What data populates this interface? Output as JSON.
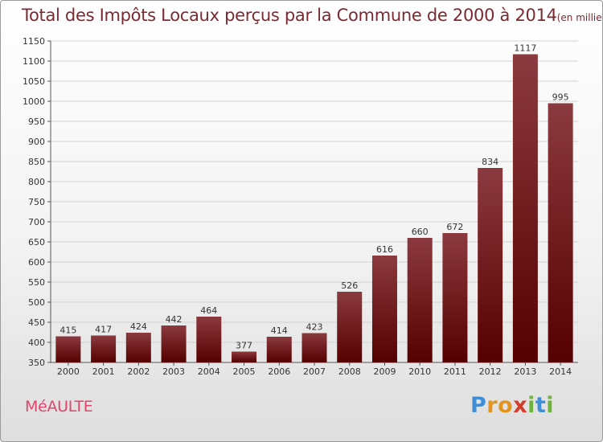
{
  "chart_data": {
    "type": "bar",
    "title": "Total des Impôts Locaux perçus par la Commune de 2000 à 2014",
    "title_unit": "(en milliers d'€)",
    "categories": [
      "2000",
      "2001",
      "2002",
      "2003",
      "2004",
      "2005",
      "2006",
      "2007",
      "2008",
      "2009",
      "2010",
      "2011",
      "2012",
      "2013",
      "2014"
    ],
    "values": [
      415,
      417,
      424,
      442,
      464,
      377,
      414,
      423,
      526,
      616,
      660,
      672,
      834,
      1117,
      995
    ],
    "ylim": [
      350,
      1150
    ],
    "yticks": [
      350,
      400,
      450,
      500,
      550,
      600,
      650,
      700,
      750,
      800,
      850,
      900,
      950,
      1000,
      1050,
      1100,
      1150
    ],
    "xlabel": "",
    "ylabel": "",
    "grid": true,
    "bar_color_top": "#8b3a3f",
    "bar_color_bottom": "#550000"
  },
  "commune_name": "MéAULTE",
  "logo": {
    "letters": [
      "P",
      "r",
      "o",
      "x",
      "i",
      "t",
      "i"
    ],
    "colors": [
      "#3f8fd6",
      "#e2941f",
      "#e2941f",
      "#d43c2c",
      "#6fb43a",
      "#3f8fd6",
      "#6fb43a"
    ]
  }
}
